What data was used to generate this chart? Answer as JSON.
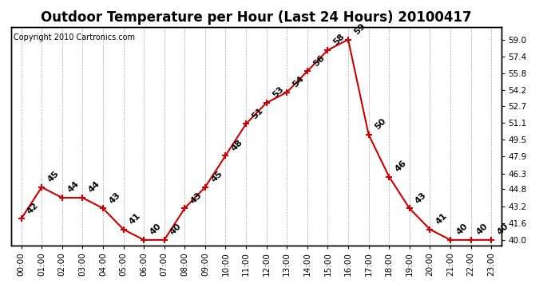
{
  "title": "Outdoor Temperature per Hour (Last 24 Hours) 20100417",
  "copyright": "Copyright 2010 Cartronics.com",
  "hours": [
    "00:00",
    "01:00",
    "02:00",
    "03:00",
    "04:00",
    "05:00",
    "06:00",
    "07:00",
    "08:00",
    "09:00",
    "10:00",
    "11:00",
    "12:00",
    "13:00",
    "14:00",
    "15:00",
    "16:00",
    "17:00",
    "18:00",
    "19:00",
    "20:00",
    "21:00",
    "22:00",
    "23:00"
  ],
  "values": [
    42,
    45,
    44,
    44,
    43,
    41,
    40,
    40,
    43,
    45,
    48,
    51,
    53,
    54,
    56,
    58,
    59,
    50,
    46,
    43,
    41,
    40,
    40,
    40
  ],
  "ylim": [
    39.5,
    60.2
  ],
  "yticks_right": [
    40.0,
    41.6,
    43.2,
    44.8,
    46.3,
    47.9,
    49.5,
    51.1,
    52.7,
    54.2,
    55.8,
    57.4,
    59.0
  ],
  "line_color": "#cc0000",
  "marker_color": "#cc0000",
  "grid_color": "#aaaaaa",
  "background_color": "#ffffff",
  "title_fontsize": 12,
  "label_fontsize": 8,
  "copyright_fontsize": 7,
  "tick_fontsize": 7.5,
  "annotation_rotation": 45
}
